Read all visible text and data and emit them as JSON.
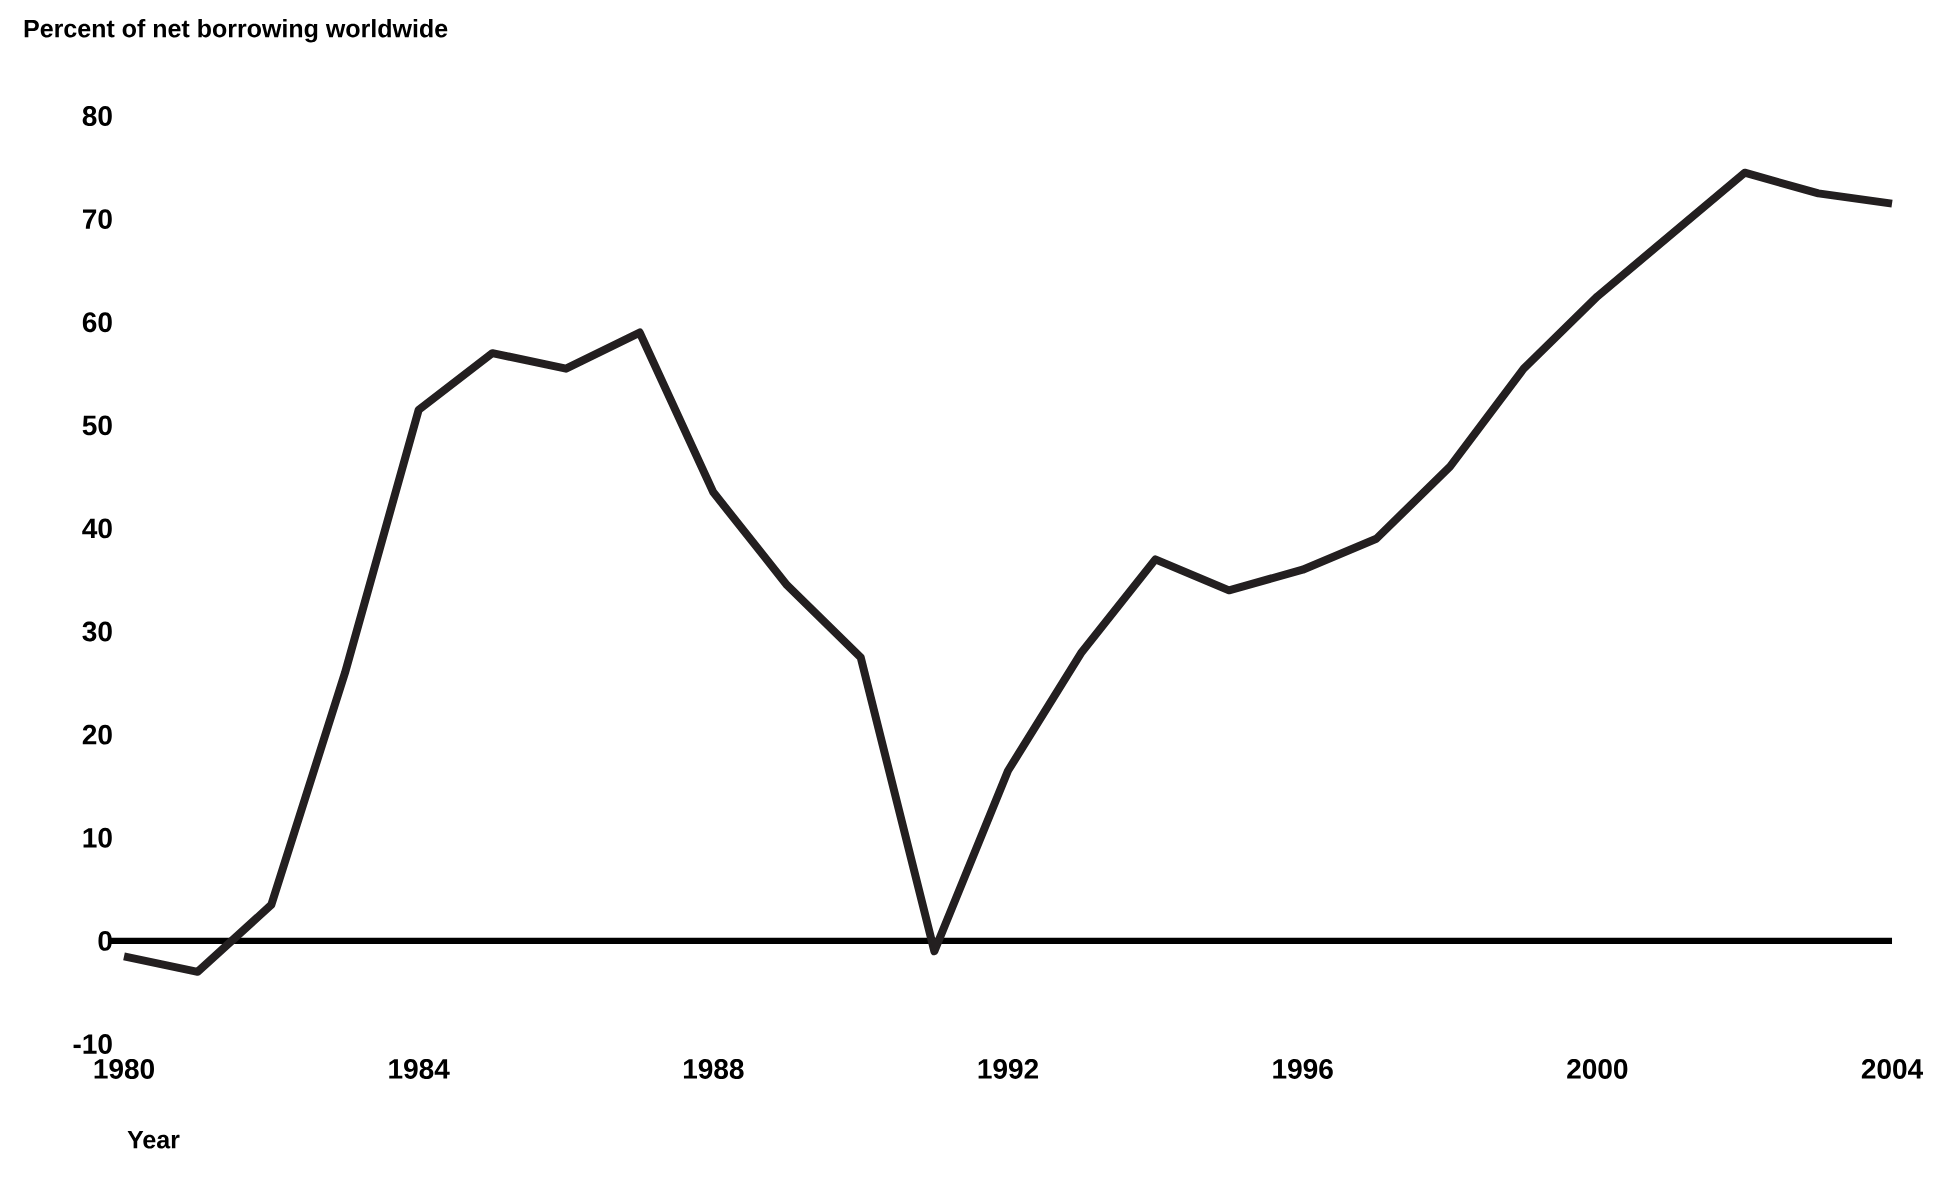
{
  "chart_data": {
    "type": "line",
    "ylabel": "Percent of net borrowing worldwide",
    "xlabel": "Year",
    "x": [
      1980,
      1981,
      1982,
      1983,
      1984,
      1985,
      1986,
      1987,
      1988,
      1989,
      1990,
      1991,
      1992,
      1993,
      1994,
      1995,
      1996,
      1997,
      1998,
      1999,
      2000,
      2001,
      2002,
      2003,
      2004
    ],
    "values": [
      -1.5,
      -3,
      3.5,
      26,
      51.5,
      57,
      55.5,
      59,
      43.5,
      34.5,
      27.5,
      -1,
      16.5,
      28,
      37,
      34,
      36,
      39,
      46,
      55.5,
      62.5,
      68.5,
      74.5,
      72.5,
      71.5
    ],
    "color": "#231f20",
    "xlim": [
      1980,
      2004
    ],
    "ylim": [
      -10,
      80
    ],
    "xticks": [
      1980,
      1984,
      1988,
      1992,
      1996,
      2000,
      2004
    ],
    "yticks": [
      -10,
      0,
      10,
      20,
      30,
      40,
      50,
      60,
      70,
      80
    ],
    "ref_lines": [
      {
        "axis": "y",
        "value": 0,
        "color": "#000000"
      }
    ]
  }
}
